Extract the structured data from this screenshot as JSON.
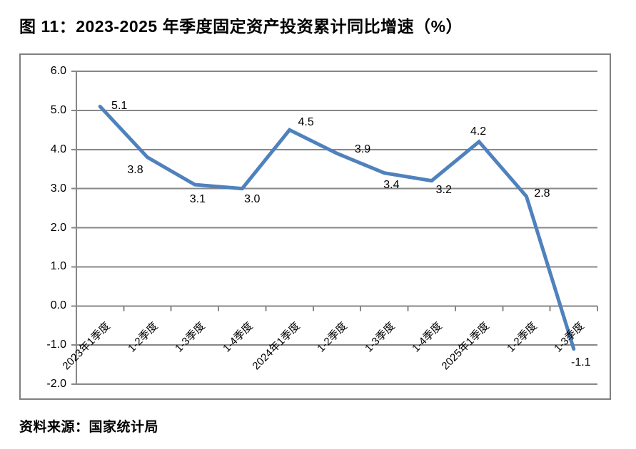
{
  "title": "图 11：2023-2025 年季度固定资产投资累计同比增速（%）",
  "source": "资料来源：国家统计局",
  "colors": {
    "line": "#4F81BD",
    "grid": "#878787",
    "axis": "#808080",
    "text": "#000000",
    "chart_border": "#808080"
  },
  "chart_data": {
    "type": "line",
    "title": "",
    "xlabel": "",
    "ylabel": "",
    "categories": [
      "2023年1季度",
      "1-2季度",
      "1-3季度",
      "1-4季度",
      "2024年1季度",
      "1-2季度",
      "1-3季度",
      "1-4季度",
      "2025年1季度",
      "1-2季度",
      "1-3季度"
    ],
    "values": [
      5.1,
      3.8,
      3.1,
      3.0,
      4.5,
      3.9,
      3.4,
      3.2,
      4.2,
      2.8,
      -1.1
    ],
    "data_labels": [
      "5.1",
      "3.8",
      "3.1",
      "3.0",
      "4.5",
      "3.9",
      "3.4",
      "3.2",
      "4.2",
      "2.8",
      "-1.1"
    ],
    "ylim": [
      -2.0,
      6.0
    ],
    "ytick_step": 1.0,
    "ytick_labels": [
      "6.0",
      "5.0",
      "4.0",
      "3.0",
      "2.0",
      "1.0",
      "0.0",
      "-1.0",
      "-2.0"
    ],
    "xtick_rotation_deg": 45,
    "grid": "horizontal",
    "legend": "none"
  }
}
